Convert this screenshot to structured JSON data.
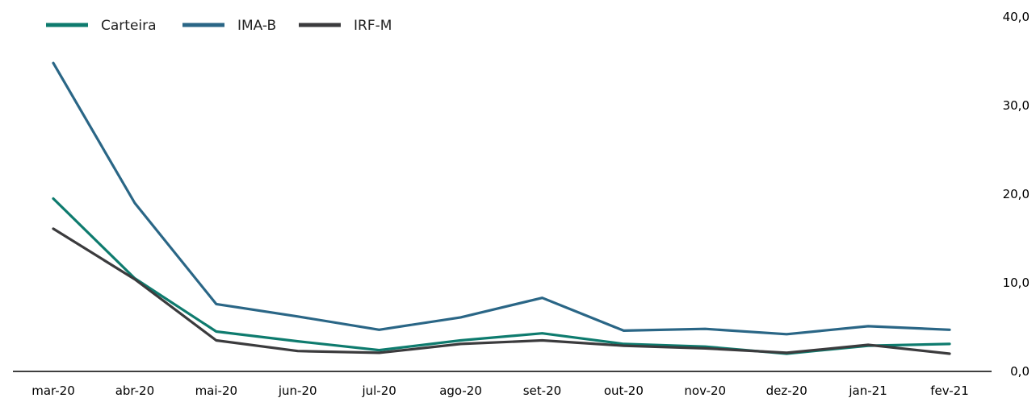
{
  "chart_data": {
    "type": "line",
    "title": "",
    "xlabel": "",
    "ylabel": "",
    "categories": [
      "mar-20",
      "abr-20",
      "mai-20",
      "jun-20",
      "jul-20",
      "ago-20",
      "set-20",
      "out-20",
      "nov-20",
      "dez-20",
      "jan-21",
      "fev-21"
    ],
    "y_ticks": [
      "0,0",
      "10,0",
      "20,0",
      "30,0",
      "40,0"
    ],
    "ylim": [
      0,
      40
    ],
    "y_axis_position": "right",
    "grid": false,
    "legend_position": "top-left",
    "series": [
      {
        "name": "Carteira",
        "color": "#0e7b6e",
        "values": [
          19.5,
          10.5,
          4.5,
          3.4,
          2.4,
          3.5,
          4.3,
          3.1,
          2.8,
          2.0,
          2.9,
          3.1
        ]
      },
      {
        "name": "IMA-B",
        "color": "#2a6686",
        "values": [
          34.8,
          19.0,
          7.6,
          6.2,
          4.7,
          6.1,
          8.3,
          4.6,
          4.8,
          4.2,
          5.1,
          4.7
        ]
      },
      {
        "name": "IRF-M",
        "color": "#3b3b3d",
        "values": [
          16.1,
          10.4,
          3.5,
          2.3,
          2.1,
          3.1,
          3.5,
          2.9,
          2.6,
          2.1,
          3.0,
          2.0
        ]
      }
    ]
  }
}
